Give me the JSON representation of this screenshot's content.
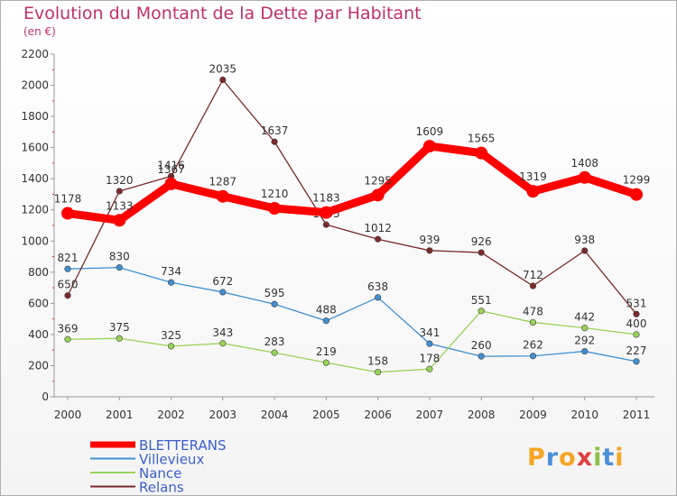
{
  "title": "Evolution du Montant de la Dette par Habitant",
  "unit": "(en €)",
  "logo_text": "Proxiti",
  "colors": {
    "title": "#c0306a",
    "axis": "#999999",
    "grid_tick": "#cc3333",
    "BLETTERANS": "#ff0000",
    "Villevieux": "#3f8fd1",
    "Nance": "#99d25a",
    "Relans": "#7a2a2a"
  },
  "chart_data": {
    "type": "line",
    "title": "Evolution du Montant de la Dette par Habitant",
    "subtitle": "(en €)",
    "xlabel": "",
    "ylabel": "",
    "ylim": [
      0,
      2200
    ],
    "yticks": [
      0,
      200,
      400,
      600,
      800,
      1000,
      1200,
      1400,
      1600,
      1800,
      2000,
      2200
    ],
    "x": [
      "2000",
      "2001",
      "2002",
      "2003",
      "2004",
      "2005",
      "2006",
      "2007",
      "2008",
      "2009",
      "2010",
      "2011"
    ],
    "legend_position": "bottom-left",
    "series": [
      {
        "name": "BLETTERANS",
        "color": "#ff0000",
        "values": [
          1178,
          1133,
          1367,
          1287,
          1210,
          1183,
          1295,
          1609,
          1565,
          1319,
          1408,
          1299
        ]
      },
      {
        "name": "Villevieux",
        "color": "#3f8fd1",
        "values": [
          821,
          830,
          734,
          672,
          595,
          488,
          638,
          341,
          260,
          262,
          292,
          227
        ]
      },
      {
        "name": "Nance",
        "color": "#99d25a",
        "values": [
          369,
          375,
          325,
          343,
          283,
          219,
          158,
          178,
          551,
          478,
          442,
          400
        ]
      },
      {
        "name": "Relans",
        "color": "#7a2a2a",
        "values": [
          650,
          1320,
          1416,
          2035,
          1637,
          1105,
          1012,
          939,
          926,
          712,
          938,
          531
        ]
      }
    ]
  }
}
